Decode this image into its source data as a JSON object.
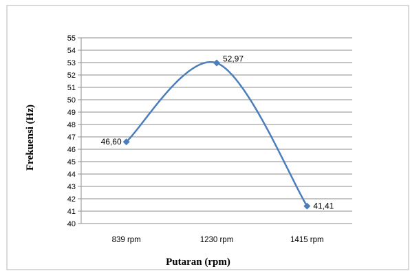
{
  "chart_data": {
    "type": "line",
    "title": "",
    "xlabel": "Putaran (rpm)",
    "ylabel": "Frekuensi (Hz)",
    "categories": [
      "839 rpm",
      "1230 rpm",
      "1415 rpm"
    ],
    "series": [
      {
        "values": [
          46.6,
          52.97,
          41.41
        ],
        "labels": [
          "46,60",
          "52,97",
          "41,41"
        ]
      }
    ],
    "ylim": [
      40,
      55
    ],
    "yticks": [
      "40",
      "41",
      "42",
      "43",
      "44",
      "45",
      "46",
      "47",
      "48",
      "49",
      "50",
      "51",
      "52",
      "53",
      "54",
      "55"
    ],
    "grid": true,
    "smooth": true,
    "line_color": "#4a7ebb",
    "grid_color": "#8c8c8c"
  }
}
